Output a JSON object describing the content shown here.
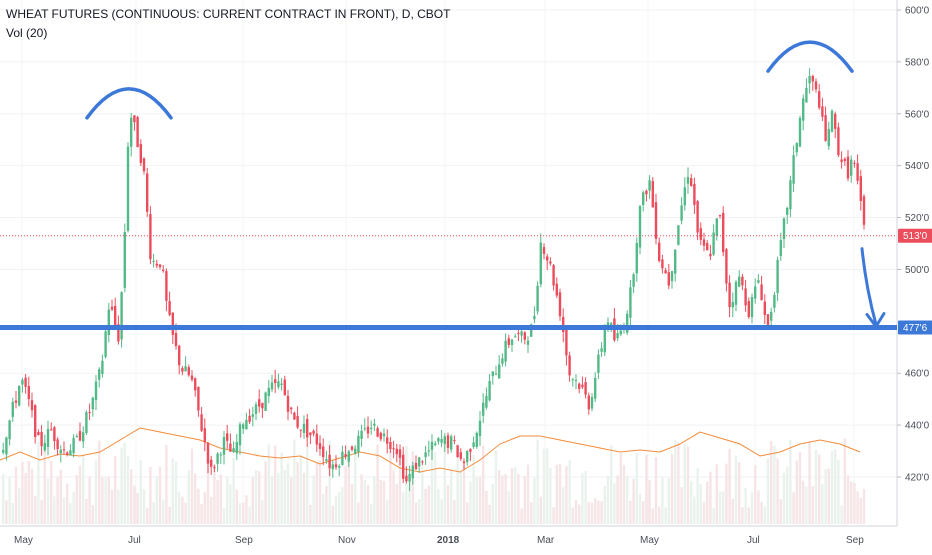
{
  "chart_data": {
    "type": "candlestick",
    "title": "WHEAT FUTURES (CONTINUOUS: CURRENT CONTRACT IN FRONT), D, CBOT",
    "subtitle": "Vol (20)",
    "ylim": [
      400,
      604
    ],
    "y_ticks": [
      {
        "value": 420,
        "label": "420'0"
      },
      {
        "value": 440,
        "label": "440'0"
      },
      {
        "value": 460,
        "label": "460'0"
      },
      {
        "value": 500,
        "label": "500'0"
      },
      {
        "value": 520,
        "label": "520'0"
      },
      {
        "value": 540,
        "label": "540'0"
      },
      {
        "value": 560,
        "label": "560'0"
      },
      {
        "value": 580,
        "label": "580'0"
      },
      {
        "value": 600,
        "label": "600'0"
      }
    ],
    "x_ticks": [
      "May",
      "Jul",
      "Sep",
      "Nov",
      "2018",
      "Mar",
      "May",
      "Jul",
      "Sep"
    ],
    "price_trend": [
      [
        0,
        430
      ],
      [
        10,
        444
      ],
      [
        20,
        458
      ],
      [
        28,
        448
      ],
      [
        38,
        432
      ],
      [
        50,
        438
      ],
      [
        62,
        430
      ],
      [
        75,
        433
      ],
      [
        90,
        447
      ],
      [
        100,
        462
      ],
      [
        108,
        487
      ],
      [
        118,
        473
      ],
      [
        124,
        518
      ],
      [
        128,
        562
      ],
      [
        134,
        553
      ],
      [
        142,
        540
      ],
      [
        150,
        503
      ],
      [
        160,
        503
      ],
      [
        166,
        484
      ],
      [
        172,
        473
      ],
      [
        180,
        462
      ],
      [
        190,
        458
      ],
      [
        200,
        440
      ],
      [
        210,
        422
      ],
      [
        222,
        434
      ],
      [
        232,
        428
      ],
      [
        242,
        442
      ],
      [
        255,
        446
      ],
      [
        270,
        454
      ],
      [
        280,
        456
      ],
      [
        292,
        442
      ],
      [
        305,
        438
      ],
      [
        318,
        433
      ],
      [
        330,
        424
      ],
      [
        345,
        430
      ],
      [
        358,
        434
      ],
      [
        370,
        440
      ],
      [
        382,
        436
      ],
      [
        395,
        432
      ],
      [
        405,
        418
      ],
      [
        415,
        425
      ],
      [
        428,
        430
      ],
      [
        440,
        434
      ],
      [
        452,
        433
      ],
      [
        462,
        425
      ],
      [
        475,
        438
      ],
      [
        488,
        455
      ],
      [
        500,
        467
      ],
      [
        512,
        475
      ],
      [
        522,
        473
      ],
      [
        532,
        478
      ],
      [
        540,
        512
      ],
      [
        550,
        500
      ],
      [
        560,
        482
      ],
      [
        568,
        460
      ],
      [
        578,
        456
      ],
      [
        588,
        448
      ],
      [
        598,
        466
      ],
      [
        606,
        482
      ],
      [
        614,
        472
      ],
      [
        622,
        478
      ],
      [
        630,
        492
      ],
      [
        638,
        522
      ],
      [
        648,
        535
      ],
      [
        658,
        505
      ],
      [
        668,
        495
      ],
      [
        678,
        520
      ],
      [
        688,
        540
      ],
      [
        698,
        510
      ],
      [
        708,
        505
      ],
      [
        718,
        522
      ],
      [
        728,
        486
      ],
      [
        738,
        497
      ],
      [
        748,
        484
      ],
      [
        758,
        497
      ],
      [
        766,
        476
      ],
      [
        772,
        490
      ],
      [
        780,
        510
      ],
      [
        790,
        535
      ],
      [
        800,
        562
      ],
      [
        808,
        574
      ],
      [
        818,
        565
      ],
      [
        824,
        548
      ],
      [
        830,
        560
      ],
      [
        838,
        545
      ],
      [
        846,
        537
      ],
      [
        852,
        543
      ],
      [
        858,
        528
      ],
      [
        864,
        513
      ]
    ],
    "last_price": {
      "value": 513,
      "label": "513'0"
    },
    "support_level": {
      "value": 477.6,
      "label": "477'6"
    },
    "annotations": [
      {
        "type": "arc",
        "description": "top",
        "center_x_pos": 129,
        "peak": 570
      },
      {
        "type": "arc",
        "description": "top",
        "center_x_pos": 810,
        "peak": 588
      },
      {
        "type": "arrow",
        "from": [
          862,
          508
        ],
        "to": [
          876,
          478
        ]
      }
    ],
    "volume_ma": [
      [
        0,
        0.32
      ],
      [
        20,
        0.36
      ],
      [
        40,
        0.32
      ],
      [
        60,
        0.35
      ],
      [
        80,
        0.34
      ],
      [
        100,
        0.36
      ],
      [
        120,
        0.42
      ],
      [
        140,
        0.48
      ],
      [
        160,
        0.46
      ],
      [
        180,
        0.44
      ],
      [
        200,
        0.42
      ],
      [
        220,
        0.38
      ],
      [
        240,
        0.36
      ],
      [
        260,
        0.34
      ],
      [
        280,
        0.33
      ],
      [
        300,
        0.34
      ],
      [
        320,
        0.3
      ],
      [
        340,
        0.33
      ],
      [
        360,
        0.36
      ],
      [
        380,
        0.34
      ],
      [
        400,
        0.28
      ],
      [
        420,
        0.26
      ],
      [
        440,
        0.28
      ],
      [
        460,
        0.26
      ],
      [
        480,
        0.32
      ],
      [
        500,
        0.4
      ],
      [
        520,
        0.44
      ],
      [
        540,
        0.44
      ],
      [
        560,
        0.42
      ],
      [
        580,
        0.4
      ],
      [
        600,
        0.38
      ],
      [
        620,
        0.36
      ],
      [
        640,
        0.37
      ],
      [
        660,
        0.36
      ],
      [
        680,
        0.4
      ],
      [
        700,
        0.46
      ],
      [
        720,
        0.43
      ],
      [
        740,
        0.4
      ],
      [
        760,
        0.34
      ],
      [
        780,
        0.36
      ],
      [
        800,
        0.4
      ],
      [
        820,
        0.42
      ],
      [
        840,
        0.4
      ],
      [
        860,
        0.36
      ]
    ]
  }
}
